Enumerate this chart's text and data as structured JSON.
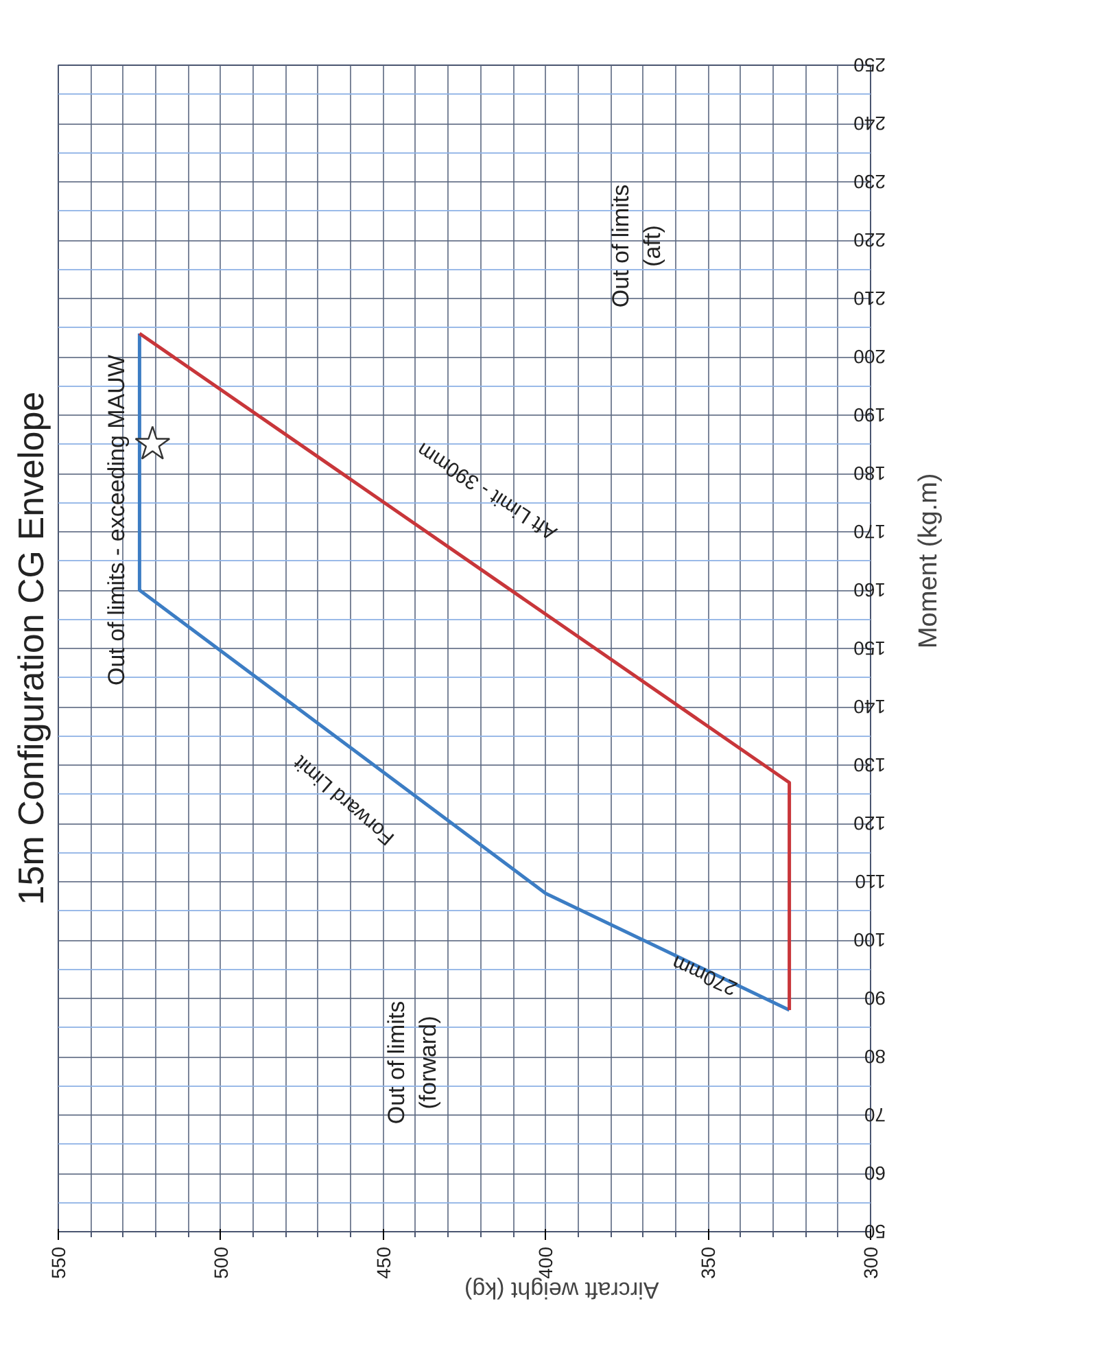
{
  "chart_data": {
    "type": "line",
    "title": "15m Configuration CG Envelope",
    "xlabel": "Aircraft weight (kg)",
    "ylabel": "Moment (kg.m)",
    "xlim": [
      550,
      300
    ],
    "xticks": [
      550,
      {
        "value": 540,
        "label": null
      },
      {
        "value": 530,
        "label": null
      },
      {
        "value": 520,
        "label": null
      },
      {
        "value": 510,
        "label": null
      },
      500,
      {
        "value": 490,
        "label": null
      },
      {
        "value": 480,
        "label": null
      },
      {
        "value": 470,
        "label": null
      },
      {
        "value": 460,
        "label": null
      },
      450,
      {
        "value": 440,
        "label": null
      },
      {
        "value": 430,
        "label": null
      },
      {
        "value": 420,
        "label": null
      },
      {
        "value": 410,
        "label": null
      },
      400,
      {
        "value": 390,
        "label": null
      },
      {
        "value": 380,
        "label": null
      },
      {
        "value": 370,
        "label": null
      },
      {
        "value": 360,
        "label": null
      },
      350,
      {
        "value": 340,
        "label": null
      },
      {
        "value": 330,
        "label": null
      },
      {
        "value": 320,
        "label": null
      },
      {
        "value": 310,
        "label": null
      },
      300
    ],
    "ylim": [
      50,
      250
    ],
    "yticks": [
      50,
      {
        "value": 55,
        "label": null
      },
      60,
      {
        "value": 65,
        "label": null
      },
      70,
      {
        "value": 75,
        "label": null
      },
      80,
      {
        "value": 85,
        "label": null
      },
      90,
      {
        "value": 95,
        "label": null
      },
      100,
      {
        "value": 105,
        "label": null
      },
      110,
      {
        "value": 115,
        "label": null
      },
      120,
      {
        "value": 125,
        "label": null
      },
      130,
      {
        "value": 135,
        "label": null
      },
      140,
      {
        "value": 145,
        "label": null
      },
      150,
      {
        "value": 155,
        "label": null
      },
      160,
      {
        "value": 165,
        "label": null
      },
      170,
      {
        "value": 175,
        "label": null
      },
      180,
      {
        "value": 185,
        "label": null
      },
      190,
      {
        "value": 195,
        "label": null
      },
      200,
      {
        "value": 205,
        "label": null
      },
      210,
      {
        "value": 215,
        "label": null
      },
      220,
      {
        "value": 225,
        "label": null
      },
      230,
      {
        "value": 235,
        "label": null
      },
      240,
      {
        "value": 245,
        "label": null
      },
      250
    ],
    "grid": true,
    "marker": "none",
    "line_style": "solid",
    "series": [
      {
        "color": "#3c7dc4",
        "x": [
          325,
          400,
          525,
          525
        ],
        "values": [
          88,
          108,
          160,
          204
        ]
      },
      {
        "color": "#c8363a",
        "x": [
          525,
          325,
          325
        ],
        "values": [
          204,
          127,
          88
        ]
      },
      {
        "type": "scatter",
        "color": "#ffffff",
        "marker": "star",
        "x": [
          521
        ],
        "values": [
          185
        ]
      }
    ],
    "annotations": [
      "Out of limits - exceeding MAUW",
      "Out of limits\n(aft)",
      "Out of limits\n(forward)",
      "Forward Limit",
      "270mm",
      "Aft Limit - 390mm"
    ]
  }
}
